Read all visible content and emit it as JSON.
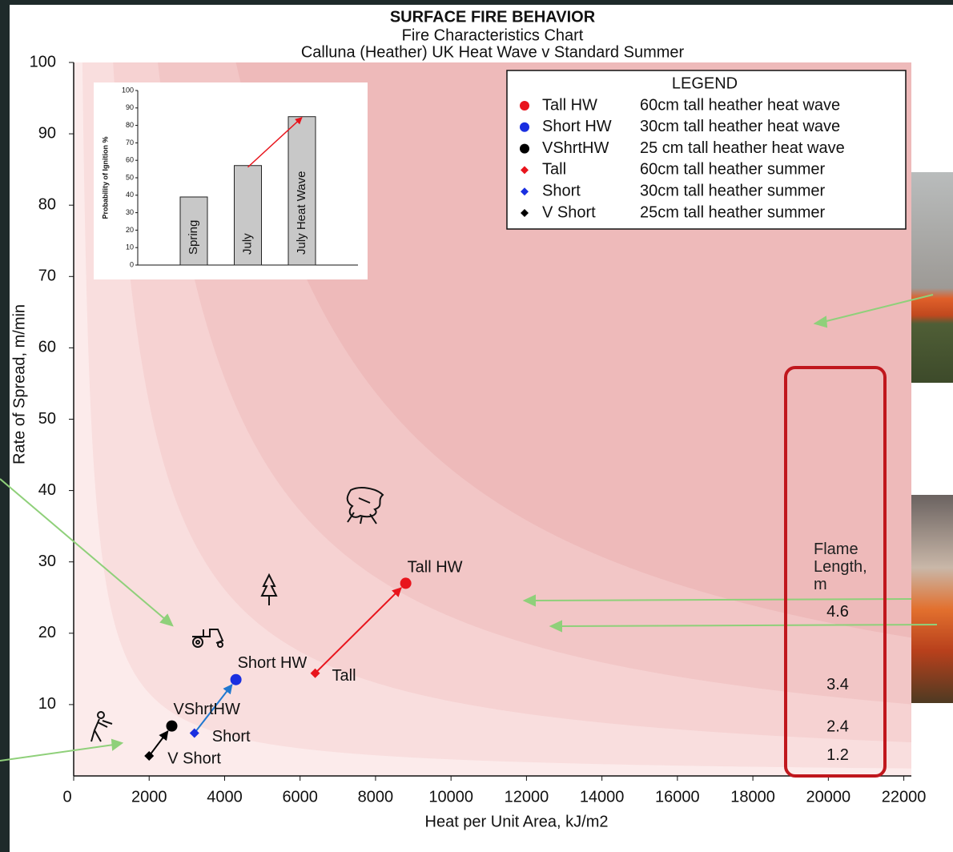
{
  "chart_data": [
    {
      "type": "scatter",
      "title": "SURFACE FIRE BEHAVIOR",
      "subtitle": [
        "Fire Characteristics Chart",
        "Calluna (Heather) UK Heat Wave v Standard Summer"
      ],
      "xlabel": "Heat per Unit Area, kJ/m2",
      "ylabel": "Rate of Spread, m/min",
      "xlim": [
        0,
        22200
      ],
      "ylim": [
        0,
        100
      ],
      "xticks": [
        0,
        2000,
        4000,
        6000,
        8000,
        10000,
        12000,
        14000,
        16000,
        18000,
        20000,
        22000
      ],
      "yticks": [
        10,
        20,
        30,
        40,
        50,
        60,
        70,
        80,
        90,
        100
      ],
      "legend_title": "LEGEND",
      "legend": "upper right",
      "series": [
        {
          "name": "Tall HW",
          "description": "60cm tall heather heat wave",
          "color": "#e8141c",
          "marker": "circle",
          "x": [
            8800
          ],
          "values": [
            27
          ]
        },
        {
          "name": "Short HW",
          "description": "30cm tall heather heat wave",
          "color": "#1a2fe0",
          "marker": "circle",
          "x": [
            4300
          ],
          "values": [
            13.5
          ]
        },
        {
          "name": "VShrtHW",
          "description": "25 cm tall heather heat wave",
          "color": "#000000",
          "marker": "circle",
          "x": [
            2600
          ],
          "values": [
            7
          ]
        },
        {
          "name": "Tall",
          "description": "60cm tall heather summer",
          "color": "#e8141c",
          "marker": "diamond",
          "x": [
            6400
          ],
          "values": [
            14.4
          ]
        },
        {
          "name": "Short",
          "description": "30cm tall heather summer",
          "color": "#1a2fe0",
          "marker": "diamond",
          "x": [
            3200
          ],
          "values": [
            6
          ]
        },
        {
          "name": "V Short",
          "description": "25cm tall heather summer",
          "color": "#000000",
          "marker": "diamond",
          "x": [
            2000
          ],
          "values": [
            2.8
          ]
        }
      ],
      "arrows": [
        {
          "from": 3,
          "to": 0,
          "color": "#e8141c"
        },
        {
          "from": 4,
          "to": 1,
          "color": "#1f78d0"
        },
        {
          "from": 5,
          "to": 2,
          "color": "#000000"
        }
      ],
      "flame_length_label": "Flame Length, m",
      "flame_lengths": [
        1.2,
        2.4,
        3.4,
        4.6
      ],
      "band_colors": [
        "#fcebeb",
        "#f9dede",
        "#f6d2d2",
        "#f2c6c6",
        "#eebaba"
      ]
    },
    {
      "type": "bar",
      "ylabel": "Probability of Ignition %",
      "categories": [
        "Spring",
        "July",
        "July Heat Wave"
      ],
      "values": [
        39,
        57,
        85
      ],
      "color": "#c8c8c8",
      "ylim": [
        0,
        100
      ],
      "yticks": [
        0,
        10,
        20,
        30,
        40,
        50,
        60,
        70,
        80,
        90,
        100
      ],
      "arrows": [
        {
          "from": 1,
          "to": 2,
          "color": "#e8141c"
        }
      ]
    }
  ]
}
